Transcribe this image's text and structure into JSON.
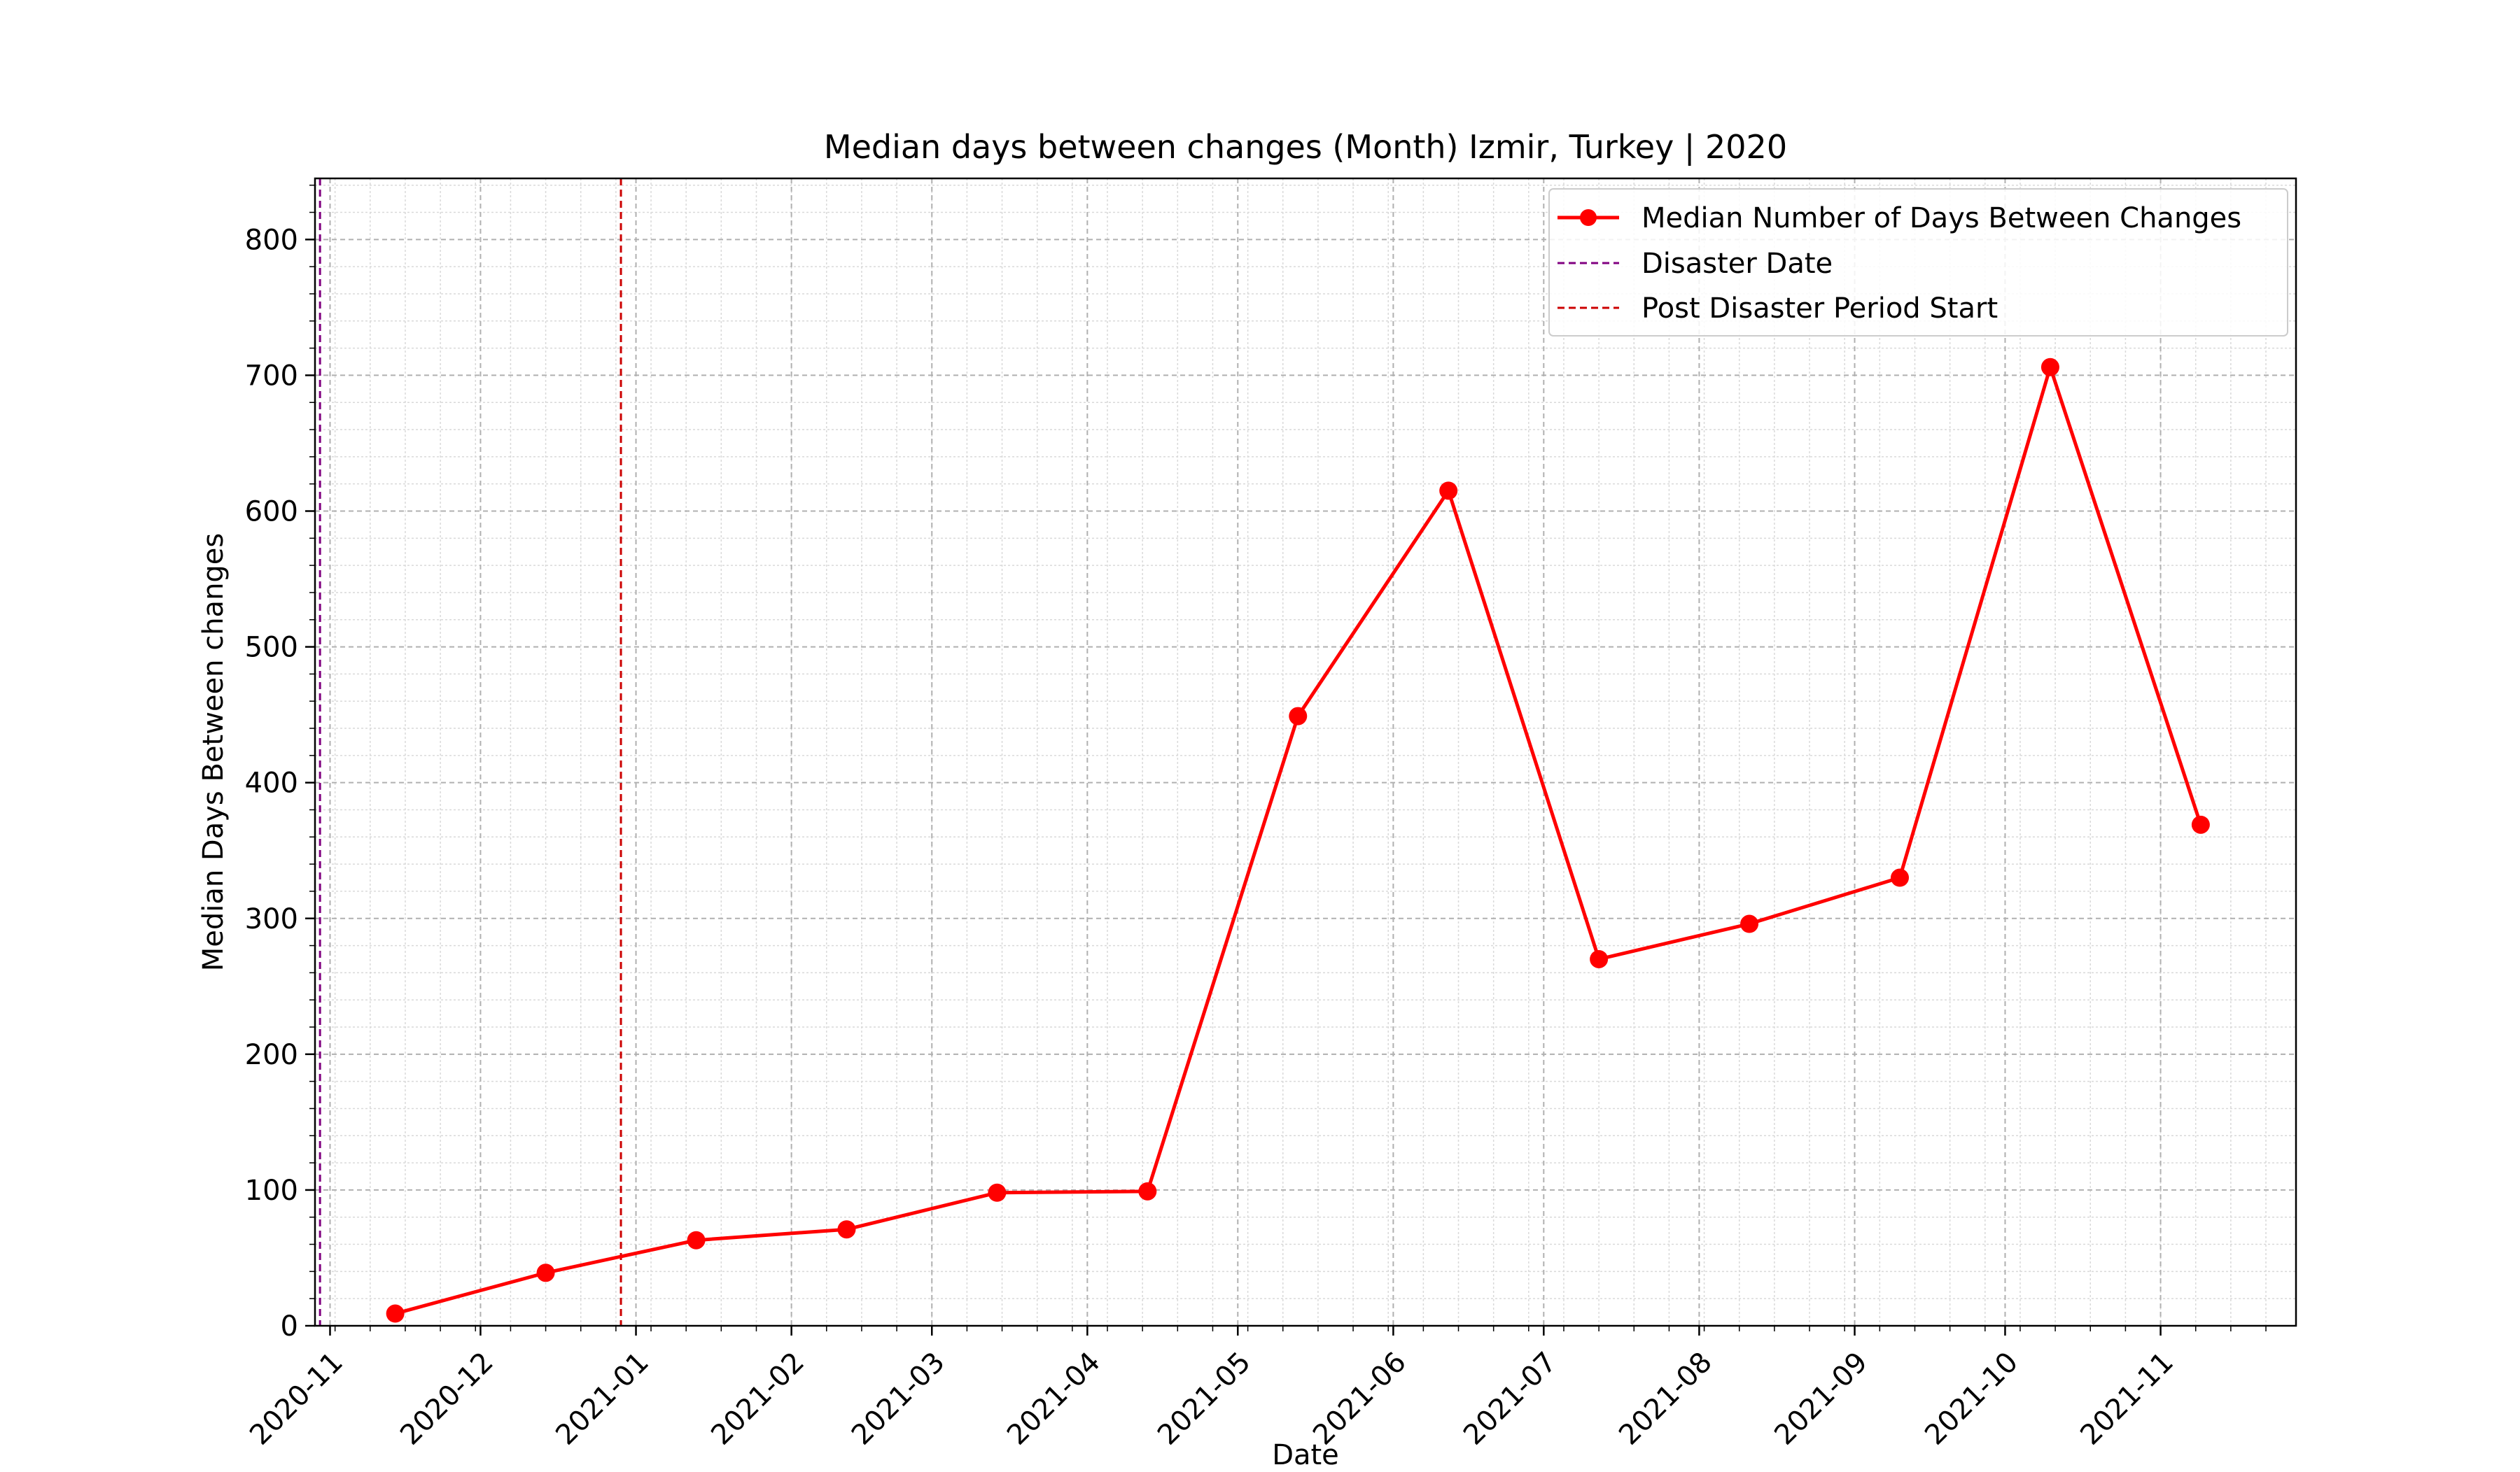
{
  "chart_data": {
    "type": "line",
    "title": "Median days between changes (Month) Izmir, Turkey | 2020",
    "xlabel": "Date",
    "ylabel": "Median Days Between changes",
    "x_tick_labels": [
      "2020-11",
      "2020-12",
      "2021-01",
      "2021-02",
      "2021-03",
      "2021-04",
      "2021-05",
      "2021-06",
      "2021-07",
      "2021-08",
      "2021-09",
      "2021-10",
      "2021-11"
    ],
    "y_ticks": [
      0,
      100,
      200,
      300,
      400,
      500,
      600,
      700,
      800
    ],
    "ylim": [
      0,
      845
    ],
    "xlim": [
      "2020-10-29",
      "2021-11-28"
    ],
    "grid": true,
    "legend_position": "top-right",
    "series": [
      {
        "name": "Median Number of Days Between Changes",
        "color": "#ff0000",
        "marker": "circle",
        "x": [
          "2020-11-14",
          "2020-12-14",
          "2021-01-13",
          "2021-02-12",
          "2021-03-14",
          "2021-04-13",
          "2021-05-13",
          "2021-06-12",
          "2021-07-12",
          "2021-08-11",
          "2021-09-10",
          "2021-10-10",
          "2021-11-09"
        ],
        "y": [
          9,
          39,
          63,
          71,
          98,
          99,
          449,
          615,
          270,
          296,
          330,
          706,
          369
        ]
      }
    ],
    "vlines": [
      {
        "name": "Disaster Date",
        "x": "2020-10-30",
        "color": "#800080",
        "style": "dashed"
      },
      {
        "name": "Post Disaster Period Start",
        "x": "2020-12-29",
        "color": "#cc0000",
        "style": "dashed"
      }
    ]
  }
}
